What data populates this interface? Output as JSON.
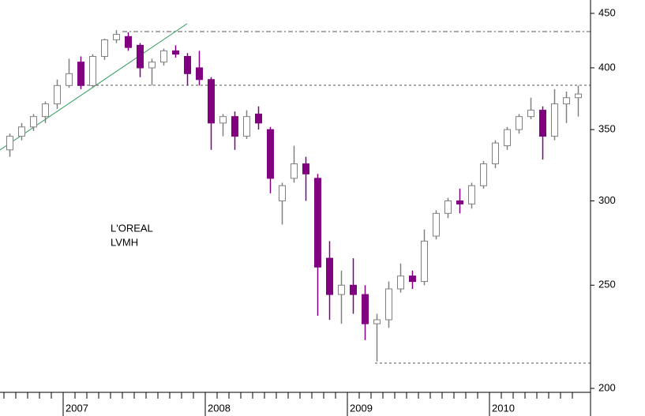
{
  "chart_data": {
    "type": "candlestick",
    "annotations": [
      "L'OREAL",
      "LVMH"
    ],
    "categories": [
      null,
      null,
      null,
      null,
      null,
      "2007",
      null,
      null,
      null,
      null,
      null,
      null,
      null,
      null,
      null,
      null,
      null,
      "2008",
      null,
      null,
      null,
      null,
      null,
      null,
      null,
      null,
      null,
      null,
      null,
      "2009",
      null,
      null,
      null,
      null,
      null,
      null,
      null,
      null,
      null,
      null,
      null,
      "2010",
      null,
      null,
      null,
      null,
      null,
      null,
      null
    ],
    "open": [
      335,
      345,
      352,
      360,
      370,
      385,
      405,
      385,
      410,
      425,
      428,
      420,
      400,
      405,
      415,
      410,
      400,
      390,
      355,
      360,
      345,
      362,
      350,
      300,
      315,
      325,
      315,
      265,
      245,
      250,
      245,
      230,
      232,
      248,
      255,
      252,
      278,
      292,
      300,
      298,
      310,
      325,
      338,
      350,
      360,
      365,
      345,
      370,
      375
    ],
    "high": [
      347,
      355,
      362,
      372,
      390,
      408,
      410,
      412,
      426,
      434,
      432,
      422,
      408,
      417,
      420,
      413,
      415,
      392,
      362,
      364,
      365,
      368,
      352,
      312,
      338,
      330,
      318,
      275,
      258,
      265,
      250,
      235,
      252,
      262,
      258,
      282,
      294,
      302,
      308,
      312,
      327,
      342,
      352,
      362,
      375,
      368,
      382,
      380,
      385
    ],
    "low": [
      330,
      342,
      349,
      355,
      366,
      383,
      382,
      383,
      407,
      422,
      415,
      392,
      385,
      402,
      409,
      385,
      385,
      335,
      345,
      335,
      343,
      350,
      305,
      285,
      312,
      300,
      234,
      232,
      230,
      235,
      222,
      212,
      228,
      246,
      248,
      250,
      276,
      289,
      292,
      295,
      308,
      322,
      335,
      347,
      358,
      328,
      342,
      355,
      360
    ],
    "close": [
      345,
      352,
      360,
      370,
      385,
      395,
      385,
      410,
      425,
      430,
      418,
      400,
      405,
      415,
      412,
      395,
      390,
      355,
      360,
      345,
      360,
      355,
      315,
      310,
      325,
      318,
      260,
      245,
      250,
      245,
      230,
      232,
      248,
      255,
      252,
      275,
      292,
      300,
      298,
      310,
      325,
      340,
      350,
      360,
      365,
      345,
      370,
      375,
      378
    ],
    "up_color": "#ffffff",
    "up_stroke": "#808080",
    "down_color": "#800080",
    "ylim": [
      198.3,
      463.2
    ],
    "yticks": [
      200,
      250,
      300,
      350,
      400,
      450
    ],
    "log_scale": true
  }
}
